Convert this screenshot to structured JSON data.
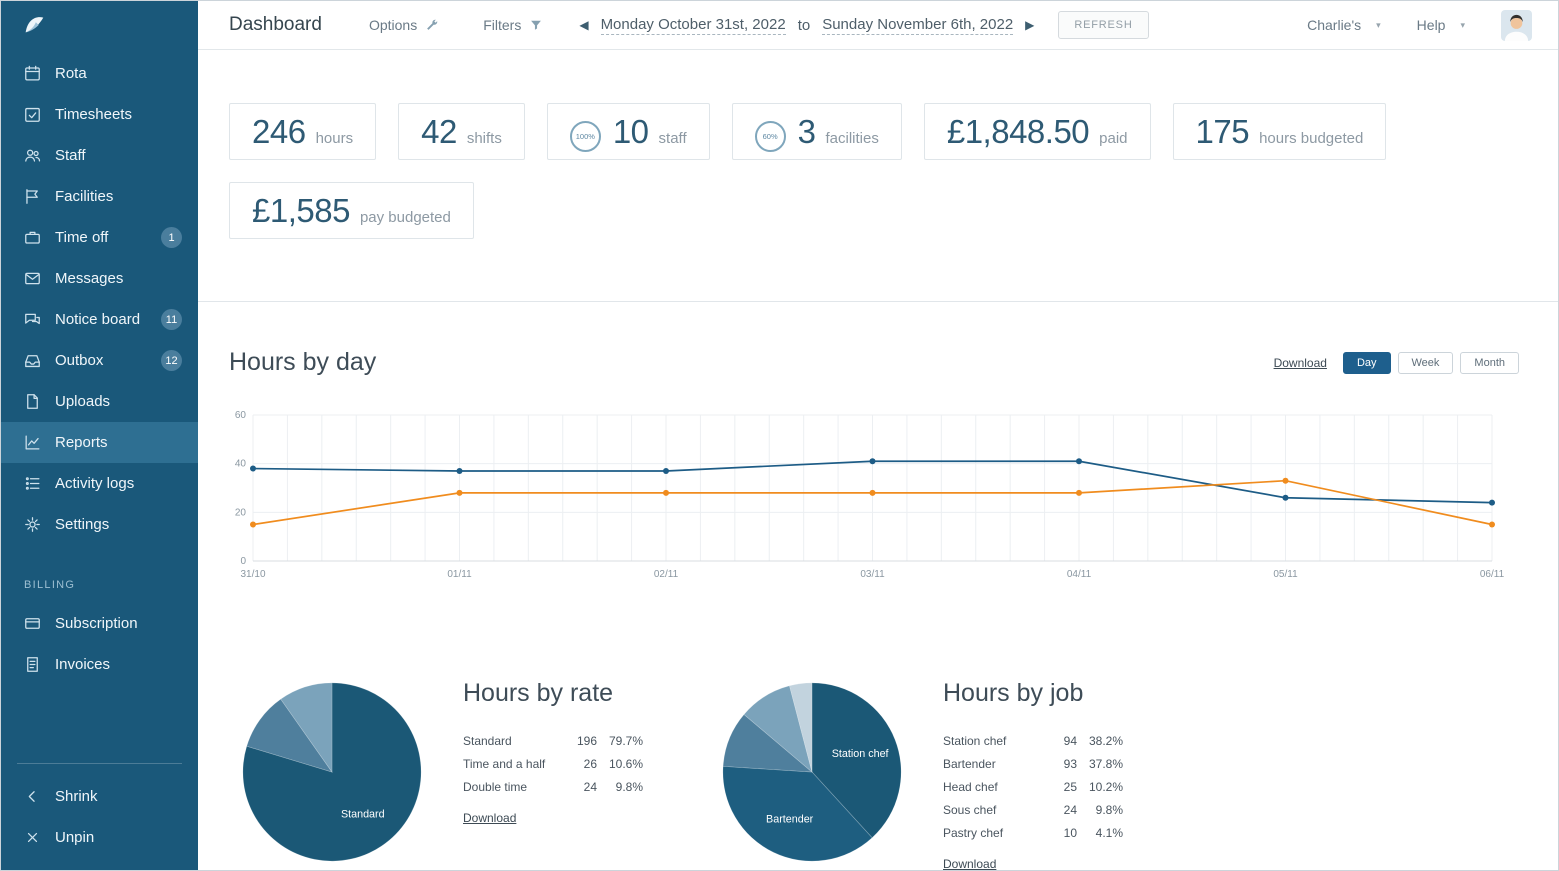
{
  "theme": {
    "sidebar_bg": "#1a587a",
    "sidebar_active": "#2e6f92",
    "accent": "#1e5f8d",
    "line_blue": "#1d5c86",
    "line_orange": "#f08c1e"
  },
  "sidebar": {
    "items": [
      {
        "label": "Rota",
        "icon": "rota-icon"
      },
      {
        "label": "Timesheets",
        "icon": "timesheets-icon"
      },
      {
        "label": "Staff",
        "icon": "staff-icon"
      },
      {
        "label": "Facilities",
        "icon": "facilities-icon"
      },
      {
        "label": "Time off",
        "icon": "time-off-icon",
        "badge": "1"
      },
      {
        "label": "Messages",
        "icon": "messages-icon"
      },
      {
        "label": "Notice board",
        "icon": "notice-board-icon",
        "badge": "11"
      },
      {
        "label": "Outbox",
        "icon": "outbox-icon",
        "badge": "12"
      },
      {
        "label": "Uploads",
        "icon": "uploads-icon"
      },
      {
        "label": "Reports",
        "icon": "reports-icon",
        "active": true
      },
      {
        "label": "Activity logs",
        "icon": "activity-logs-icon"
      },
      {
        "label": "Settings",
        "icon": "settings-icon"
      }
    ],
    "billing_label": "BILLING",
    "billing_items": [
      {
        "label": "Subscription",
        "icon": "subscription-icon"
      },
      {
        "label": "Invoices",
        "icon": "invoices-icon"
      }
    ],
    "footer_items": [
      {
        "label": "Shrink",
        "icon": "chevron-left-icon"
      },
      {
        "label": "Unpin",
        "icon": "close-icon"
      }
    ]
  },
  "topbar": {
    "title": "Dashboard",
    "options_label": "Options",
    "options_icon": "wrench-icon",
    "filters_label": "Filters",
    "filters_icon": "filter-icon",
    "prev_icon": "chevron-left-icon",
    "next_icon": "chevron-right-icon",
    "date_from": "Monday October 31st, 2022",
    "date_join": "to",
    "date_to": "Sunday November 6th, 2022",
    "refresh_label": "REFRESH",
    "account_label": "Charlie's",
    "help_label": "Help",
    "account_icon": "chevron-down-icon",
    "help_icon": "chevron-down-icon"
  },
  "stats": [
    {
      "value": "246",
      "label": "hours"
    },
    {
      "value": "42",
      "label": "shifts"
    },
    {
      "value": "10",
      "label": "staff",
      "ring": "100%"
    },
    {
      "value": "3",
      "label": "facilities",
      "ring": "60%"
    },
    {
      "value": "£1,848.50",
      "label": "paid"
    },
    {
      "value": "175",
      "label": "hours budgeted"
    },
    {
      "value": "£1,585",
      "label": "pay budgeted"
    }
  ],
  "hours_by_day": {
    "title": "Hours by day",
    "download_label": "Download",
    "range_buttons": [
      "Day",
      "Week",
      "Month"
    ],
    "active_range": "Day"
  },
  "hours_by_rate": {
    "title": "Hours by rate",
    "download_label": "Download"
  },
  "hours_by_job": {
    "title": "Hours by job",
    "download_label": "Download"
  },
  "chart_data": [
    {
      "type": "line",
      "title": "Hours by day",
      "x": [
        "31/10",
        "01/11",
        "02/11",
        "03/11",
        "04/11",
        "05/11",
        "06/11"
      ],
      "series": [
        {
          "name": "blue",
          "color": "#1d5c86",
          "values": [
            38,
            37,
            37,
            41,
            41,
            26,
            24
          ]
        },
        {
          "name": "orange",
          "color": "#f08c1e",
          "values": [
            15,
            28,
            28,
            28,
            28,
            33,
            15
          ]
        }
      ],
      "ylim": [
        0,
        60
      ],
      "yticks": [
        0,
        20,
        40,
        60
      ],
      "grid": true,
      "legend": "none"
    },
    {
      "type": "pie",
      "title": "Hours by rate",
      "slices": [
        {
          "label": "Standard",
          "value": 196,
          "pct": "79.7%",
          "color": "#1b5876",
          "label_visible": true
        },
        {
          "label": "Time and a half",
          "value": 26,
          "pct": "10.6%",
          "color": "#4f7f9d"
        },
        {
          "label": "Double time",
          "value": 24,
          "pct": "9.8%",
          "color": "#7ba3bb"
        }
      ]
    },
    {
      "type": "pie",
      "title": "Hours by job",
      "slices": [
        {
          "label": "Station chef",
          "value": 94,
          "pct": "38.2%",
          "color": "#1b5876",
          "label_visible": true
        },
        {
          "label": "Bartender",
          "value": 93,
          "pct": "37.8%",
          "color": "#1e5e80",
          "label_visible": true
        },
        {
          "label": "Head chef",
          "value": 25,
          "pct": "10.2%",
          "color": "#4f7f9d"
        },
        {
          "label": "Sous chef",
          "value": 24,
          "pct": "9.8%",
          "color": "#7ba3bb"
        },
        {
          "label": "Pastry chef",
          "value": 10,
          "pct": "4.1%",
          "color": "#c2d3de"
        }
      ]
    }
  ]
}
